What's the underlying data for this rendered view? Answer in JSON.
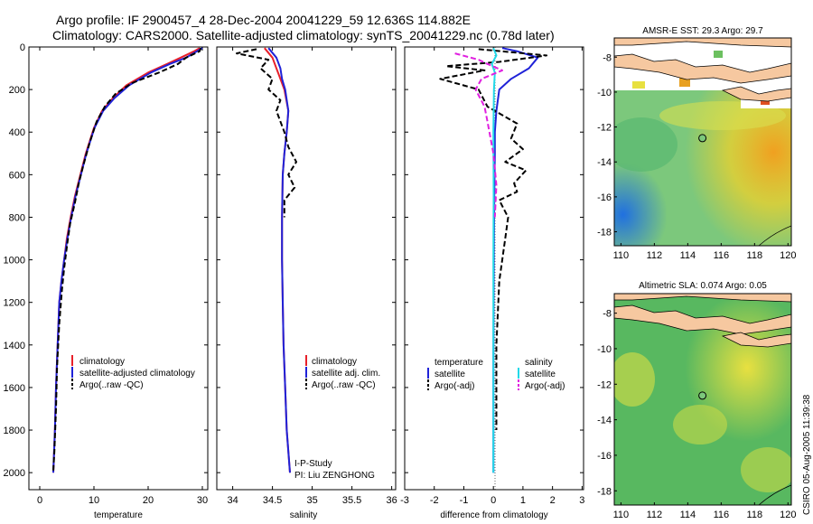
{
  "header": {
    "line1": "Argo profile: IF 2900457_4 28-Dec-2004 20041229_59 12.636S 114.882E",
    "line2": "Climatology: CARS2000. Satellite-adjusted climatology: synTS_20041229.nc (0.78d later)"
  },
  "side_label": "CSIRO 05-Aug-2005 11:39:38",
  "colors": {
    "climatology": "#e8202a",
    "satellite": "#1f22d8",
    "argo": "#000000",
    "salinity_sat": "#22d8e8",
    "salinity_argo": "#e020e0",
    "land": "#f6c8a0"
  },
  "legend1": {
    "items": [
      "climatology",
      "satellite-adjusted climatology",
      "Argo(..raw -QC)"
    ]
  },
  "legend2": {
    "items": [
      "climatology",
      "satellite adj. clim.",
      "Argo(..raw -QC)"
    ]
  },
  "legend3": {
    "temp_title": "temperature",
    "sal_title": "salinity",
    "temp_items": [
      "satellite",
      "Argo(-adj)"
    ],
    "sal_items": [
      "satellite",
      "Argo(-adj)"
    ]
  },
  "note_study": "I-P-Study",
  "note_pi": "PI: Liu ZENGHONG",
  "map1": {
    "title": "AMSR-E SST: 29.3 Argo: 29.7"
  },
  "map2": {
    "title": "Altimetric SLA: 0.074 Argo: 0.05"
  },
  "chart_data": [
    {
      "type": "line",
      "xlabel": "temperature",
      "ylabel": "",
      "xlim": [
        -2,
        31
      ],
      "ylim": [
        2080,
        0
      ],
      "xticks": [
        0,
        10,
        20,
        30
      ],
      "yticks": [
        0,
        200,
        400,
        600,
        800,
        1000,
        1200,
        1400,
        1600,
        1800,
        2000
      ],
      "series": [
        {
          "name": "climatology",
          "style": "solid",
          "color": "#e8202a",
          "x": [
            29.5,
            28.5,
            26,
            23.5,
            20,
            16,
            13.5,
            11.5,
            10,
            8.5,
            7.5,
            6.5,
            5.7,
            5,
            4.5,
            4,
            3.6,
            3.3,
            3,
            2.8,
            2.5
          ],
          "y": [
            5,
            20,
            50,
            80,
            120,
            180,
            240,
            300,
            380,
            500,
            600,
            700,
            800,
            900,
            1000,
            1100,
            1200,
            1400,
            1600,
            1800,
            2000
          ]
        },
        {
          "name": "satellite-adjusted climatology",
          "style": "solid",
          "color": "#1f22d8",
          "x": [
            30,
            29,
            27,
            24,
            20.5,
            16.5,
            13.8,
            11.7,
            10.1,
            8.6,
            7.6,
            6.6,
            5.8,
            5.1,
            4.5,
            4,
            3.6,
            3.3,
            3,
            2.8,
            2.5
          ],
          "y": [
            5,
            20,
            50,
            80,
            120,
            180,
            240,
            300,
            380,
            500,
            600,
            700,
            800,
            900,
            1000,
            1100,
            1200,
            1400,
            1600,
            1800,
            2000
          ]
        },
        {
          "name": "Argo(..raw -QC)",
          "style": "dashed",
          "color": "#000000",
          "x": [
            29.7,
            29.5,
            27,
            25.5,
            22,
            17,
            14,
            12,
            10.5,
            9.2,
            8,
            7.2,
            6.5,
            5.6,
            5.1,
            4.5,
            4.1,
            3.6,
            3.2,
            3,
            2.7,
            2.5
          ],
          "y": [
            5,
            20,
            50,
            80,
            120,
            170,
            220,
            280,
            350,
            450,
            560,
            640,
            730,
            830,
            920,
            1040,
            1140,
            1300,
            1500,
            1700,
            1900,
            1990
          ]
        }
      ]
    },
    {
      "type": "line",
      "xlabel": "salinity",
      "ylabel": "",
      "xlim": [
        33.8,
        36.05
      ],
      "ylim": [
        2080,
        0
      ],
      "xticks": [
        34,
        34.5,
        35,
        35.5,
        36
      ],
      "series": [
        {
          "name": "climatology",
          "style": "solid",
          "color": "#e8202a",
          "x": [
            34.4,
            34.5,
            34.55,
            34.6,
            34.65,
            34.7,
            34.68,
            34.65,
            34.63,
            34.62,
            34.62,
            34.63,
            34.64,
            34.66,
            34.68,
            34.7,
            34.72
          ],
          "y": [
            5,
            50,
            100,
            150,
            200,
            300,
            400,
            500,
            600,
            800,
            1000,
            1200,
            1400,
            1600,
            1800,
            1900,
            2000
          ]
        },
        {
          "name": "satellite adj. clim.",
          "style": "solid",
          "color": "#1f22d8",
          "x": [
            34.45,
            34.55,
            34.6,
            34.62,
            34.66,
            34.7,
            34.68,
            34.65,
            34.63,
            34.62,
            34.62,
            34.63,
            34.64,
            34.66,
            34.68,
            34.7,
            34.72
          ],
          "y": [
            5,
            50,
            100,
            150,
            200,
            300,
            400,
            500,
            600,
            800,
            1000,
            1200,
            1400,
            1600,
            1800,
            1900,
            2000
          ]
        },
        {
          "name": "Argo(..raw -QC)",
          "style": "dashed",
          "color": "#000000",
          "x": [
            34.3,
            34.05,
            34.45,
            34.35,
            34.5,
            34.45,
            34.6,
            34.55,
            34.65,
            34.7,
            34.8,
            34.7,
            34.78,
            34.65,
            34.65
          ],
          "y": [
            10,
            30,
            60,
            100,
            150,
            200,
            250,
            300,
            400,
            470,
            540,
            600,
            660,
            720,
            800
          ]
        }
      ]
    },
    {
      "type": "line",
      "xlabel": "difference from climatology",
      "ylabel": "",
      "xlim": [
        -3,
        3.05
      ],
      "ylim": [
        2080,
        0
      ],
      "xticks": [
        -3,
        -2,
        -1,
        0,
        1,
        2,
        3
      ],
      "series": [
        {
          "name": "temperature satellite",
          "style": "solid",
          "color": "#1f22d8",
          "x": [
            0.3,
            0.8,
            1.5,
            1.2,
            0.6,
            0.2,
            0.1,
            0.05,
            0.05,
            0.03,
            0.02,
            0.01,
            0,
            0,
            0
          ],
          "y": [
            5,
            20,
            50,
            100,
            150,
            200,
            300,
            400,
            500,
            700,
            900,
            1200,
            1500,
            1800,
            2000
          ]
        },
        {
          "name": "temperature Argo(-adj)",
          "style": "dashed",
          "color": "#000000",
          "x": [
            -0.5,
            1.8,
            0.2,
            -1.6,
            -0.3,
            -1.8,
            -0.5,
            -0.2,
            0.8,
            0.6,
            1.0,
            0.4,
            1.1,
            0.7,
            0.8,
            0.2,
            0.5,
            0.4,
            0.2,
            0.1,
            0.1
          ],
          "y": [
            10,
            40,
            70,
            90,
            110,
            150,
            200,
            280,
            360,
            430,
            480,
            540,
            580,
            640,
            680,
            720,
            800,
            900,
            1100,
            1400,
            1800
          ]
        },
        {
          "name": "salinity satellite",
          "style": "solid",
          "color": "#22d8e8",
          "x": [
            0,
            0.1,
            -0.05,
            0.05,
            0.02,
            0,
            0.01,
            0,
            0,
            0
          ],
          "y": [
            5,
            40,
            80,
            120,
            200,
            400,
            700,
            1000,
            1500,
            2000
          ]
        },
        {
          "name": "salinity Argo(-adj)",
          "style": "dashed",
          "color": "#e020e0",
          "x": [
            -1.3,
            -0.5,
            -0.2,
            0.3,
            -0.4,
            -0.6,
            -0.3,
            -0.2,
            0,
            0.1,
            0.05
          ],
          "y": [
            30,
            60,
            80,
            110,
            150,
            200,
            280,
            350,
            500,
            650,
            800
          ]
        }
      ]
    },
    {
      "type": "heatmap",
      "title": "AMSR-E SST: 29.3 Argo: 29.7",
      "xlim": [
        109.6,
        120.2
      ],
      "ylim": [
        -18.8,
        -6.9
      ],
      "xticks": [
        110,
        112,
        114,
        116,
        118,
        120
      ],
      "yticks": [
        -8,
        -10,
        -12,
        -14,
        -16,
        -18
      ],
      "argo_point": [
        114.88,
        -12.64
      ]
    },
    {
      "type": "heatmap",
      "title": "Altimetric SLA: 0.074 Argo: 0.05",
      "xlim": [
        109.6,
        120.2
      ],
      "ylim": [
        -18.8,
        -6.9
      ],
      "xticks": [
        110,
        112,
        114,
        116,
        118,
        120
      ],
      "yticks": [
        -8,
        -10,
        -12,
        -14,
        -16,
        -18
      ],
      "argo_point": [
        114.88,
        -12.64
      ]
    }
  ]
}
